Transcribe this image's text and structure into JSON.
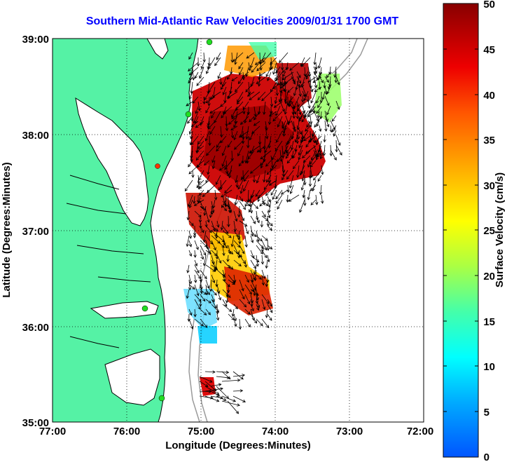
{
  "title": "Southern Mid-Atlantic Raw Velocities 2009/01/31 1700 GMT",
  "xaxis": {
    "label": "Longitude (Degrees:Minutes)",
    "ticks": [
      "77:00",
      "76:00",
      "75:00",
      "74:00",
      "73:00",
      "72:00"
    ]
  },
  "yaxis": {
    "label": "Latitude (Degrees:Minutes)",
    "ticks": [
      "39:00",
      "38:00",
      "37:00",
      "36:00",
      "35:00"
    ]
  },
  "colorbar": {
    "label": "Surface Velocity (cm/s)",
    "ticks": [
      "50",
      "45",
      "40",
      "35",
      "30",
      "25",
      "20",
      "15",
      "10",
      "5",
      "0"
    ]
  },
  "colors": {
    "land": "#55f2a5",
    "water_line": "#000000",
    "bathymetry": "#9a9a9a",
    "title": "#0000ff",
    "station": "#22dd22",
    "station_alt": "#ff3300"
  }
}
